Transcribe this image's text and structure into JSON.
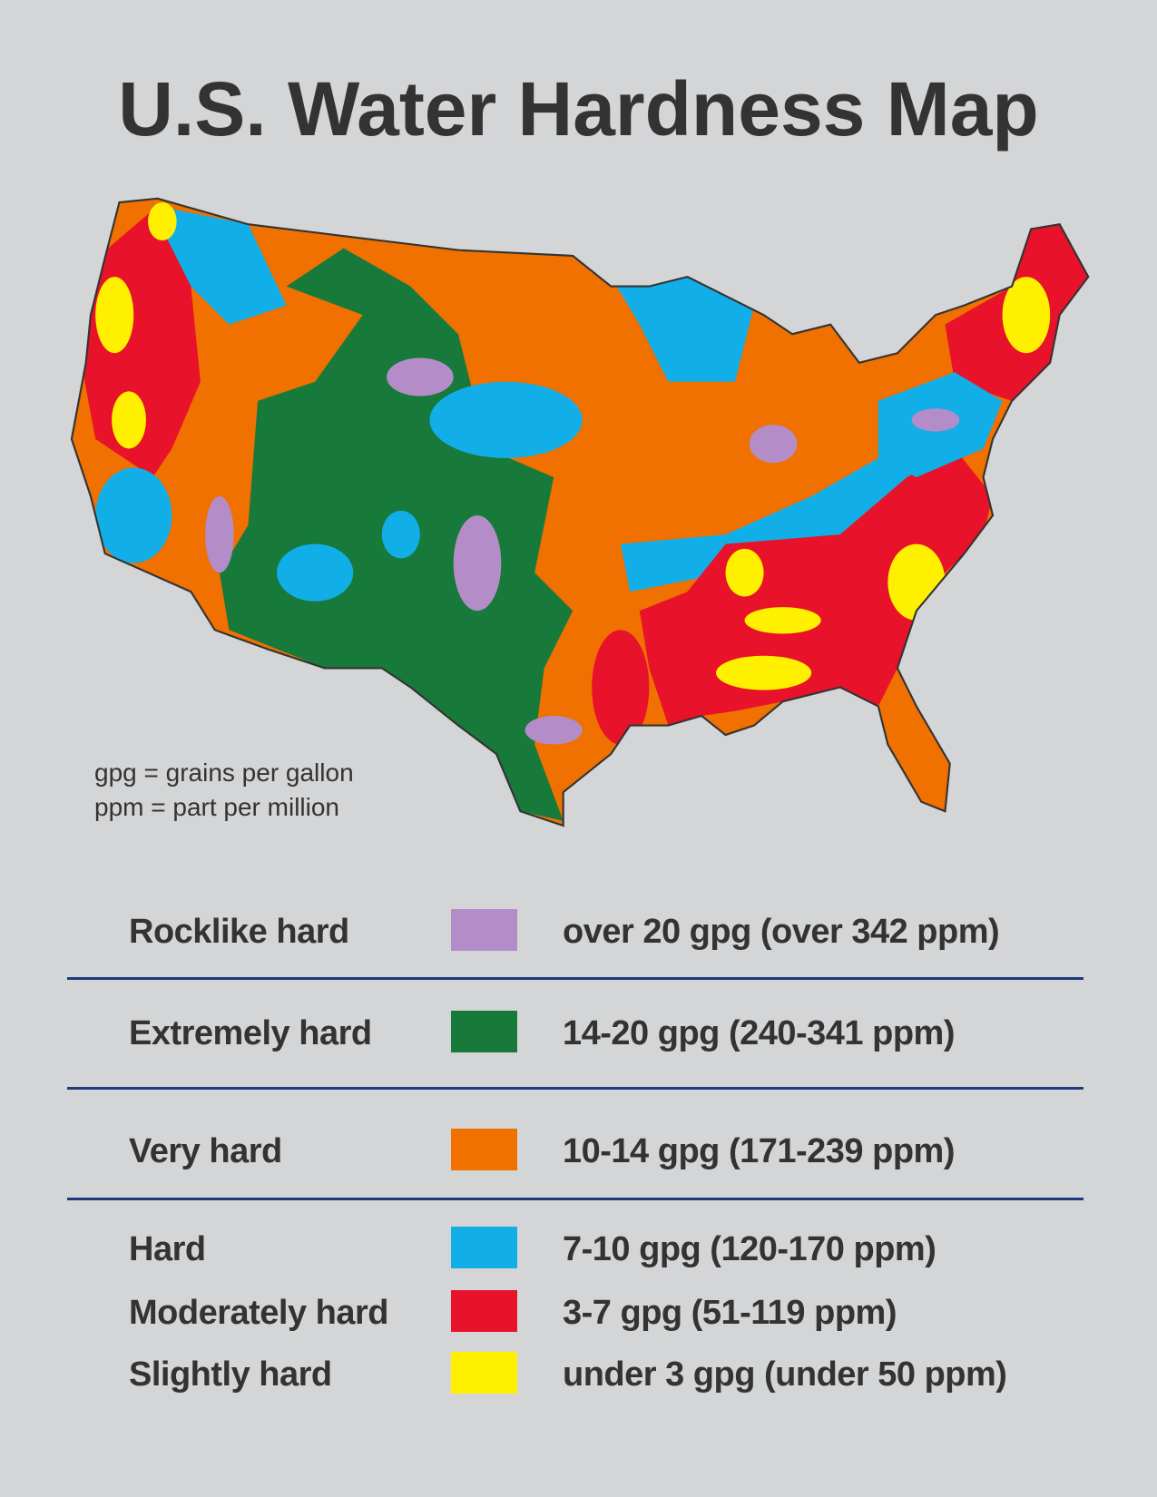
{
  "header": {
    "title": "U.S. Water Hardness Map"
  },
  "notes": [
    "gpg = grains per gallon",
    "ppm = part per million"
  ],
  "legend": {
    "rows": [
      {
        "label": "Rocklike hard",
        "color": "#b48cc8",
        "description": "over 20 gpg (over 342 ppm)"
      },
      {
        "label": "Extremely hard",
        "color": "#17793a",
        "description": "14-20 gpg (240-341 ppm)"
      },
      {
        "label": "Very hard",
        "color": "#f07000",
        "description": "10-14 gpg (171-239 ppm)"
      },
      {
        "label": "Hard",
        "color": "#12aee8",
        "description": "7-10 gpg (120-170 ppm)"
      },
      {
        "label": "Moderately hard",
        "color": "#e8122a",
        "description": "3-7 gpg (51-119 ppm)"
      },
      {
        "label": "Slightly hard",
        "color": "#fff000",
        "description": "under 3 gpg (under 50 ppm)"
      }
    ]
  }
}
